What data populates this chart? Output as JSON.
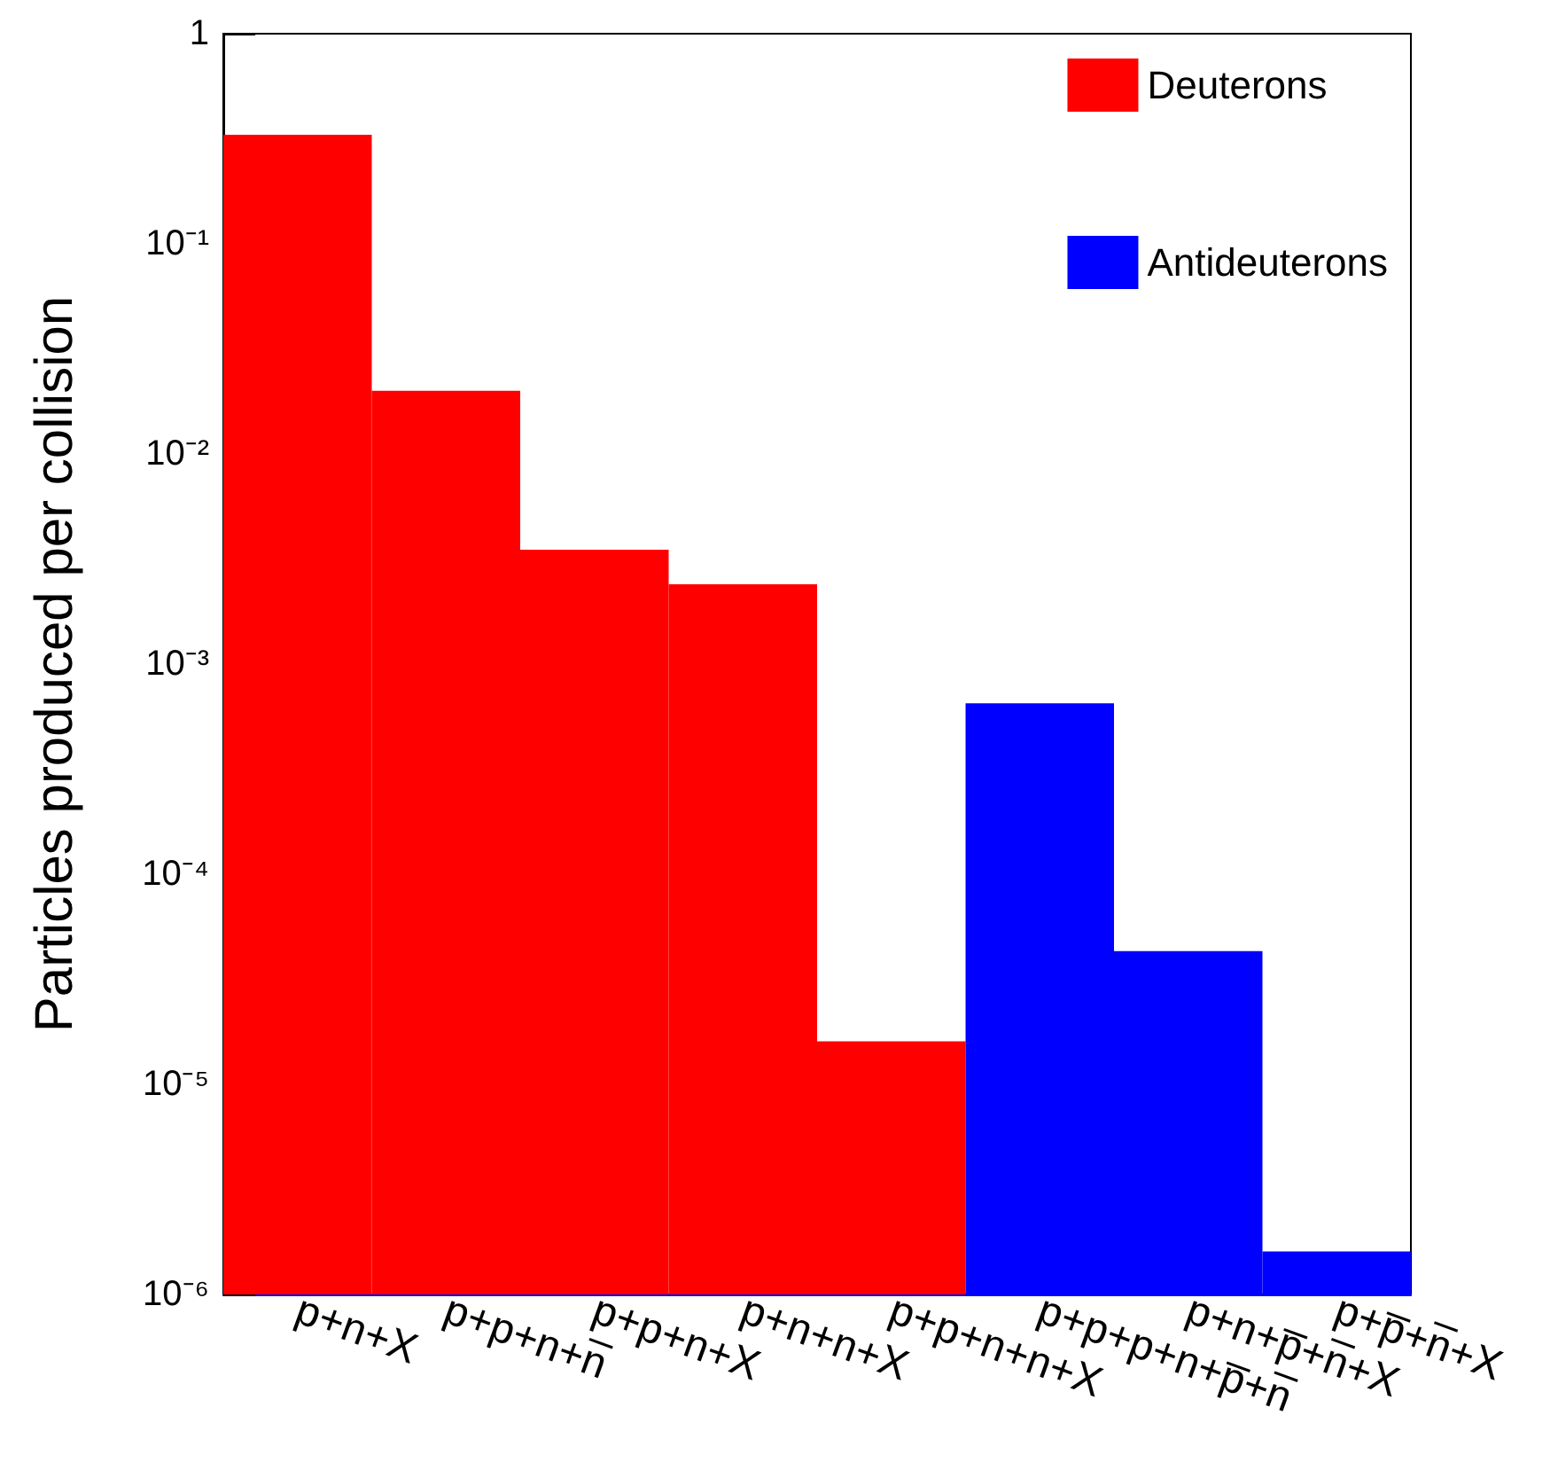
{
  "chart_data": {
    "type": "bar",
    "ylabel": "Particles produced per collision",
    "categories": [
      "p+n+X",
      "p+p+n+n̅",
      "p+p+n+X",
      "p+n+n+X",
      "p+p+n+n+X",
      "p+p+p+n+p̅+n̅",
      "p+n+p̅+n̅+X",
      "p+p̅+n̅+X"
    ],
    "series": [
      {
        "name": "Deuterons",
        "color": "#ff0000",
        "values": [
          0.33,
          0.02,
          0.0035,
          0.0024,
          1.6e-05,
          null,
          null,
          null
        ]
      },
      {
        "name": "Antideuterons",
        "color": "#0000ff",
        "values": [
          null,
          null,
          null,
          null,
          null,
          0.00065,
          4.3e-05,
          1.6e-06
        ]
      }
    ],
    "log": "y",
    "ylim": [
      1e-06,
      1
    ],
    "yticks": [
      {
        "value": 1e-06,
        "label": "10⁻⁶"
      },
      {
        "value": 1e-05,
        "label": "10⁻⁵"
      },
      {
        "value": 0.0001,
        "label": "10⁻⁴"
      },
      {
        "value": 0.001,
        "label": "10⁻³"
      },
      {
        "value": 0.01,
        "label": "10⁻²"
      },
      {
        "value": 0.1,
        "label": "10⁻¹"
      },
      1
    ],
    "grid": false,
    "legend": "top right"
  }
}
